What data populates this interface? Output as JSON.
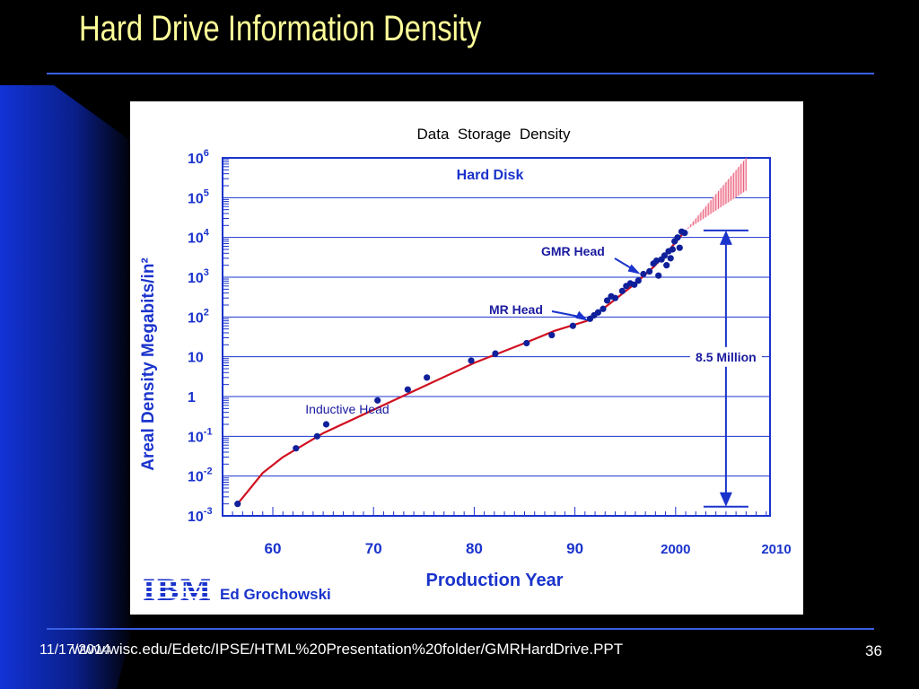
{
  "slide": {
    "title": "Hard Drive Information Density",
    "date": "11/17/2014",
    "url": "www.wisc.edu/Edetc/IPSE/HTML%20Presentation%20folder/GMRHardDrive.PPT",
    "page": "36"
  },
  "colors": {
    "background": "#000000",
    "title": "#ffff99",
    "rule": "#3a5ee6",
    "axis_text": "#1a33cc",
    "trend": "#d01020",
    "points": "#10209a",
    "projection": "#f4a0b0"
  },
  "chart_data": {
    "type": "scatter",
    "title": "Data  Storage  Density",
    "subtitle": "Hard Disk",
    "xlabel": "Production Year",
    "ylabel": "Areal Density Megabits/in²",
    "y_scale": "log",
    "xlim": [
      1955,
      2010
    ],
    "ylim": [
      0.001,
      1000000
    ],
    "x_tick_labels": [
      "60",
      "70",
      "80",
      "90",
      "2000",
      "2010"
    ],
    "y_tick_labels": [
      {
        "base": "10",
        "exp": "6"
      },
      {
        "base": "10",
        "exp": "5"
      },
      {
        "base": "10",
        "exp": "4"
      },
      {
        "base": "10",
        "exp": "3"
      },
      {
        "base": "10",
        "exp": "2"
      },
      {
        "base": "10",
        "exp": ""
      },
      {
        "base": "1",
        "exp": ""
      },
      {
        "base": "10",
        "exp": "-1"
      },
      {
        "base": "10",
        "exp": "-2"
      },
      {
        "base": "10",
        "exp": "-3"
      }
    ],
    "grid": true,
    "series": [
      {
        "values": [
          [
            1956.5,
            0.002
          ],
          [
            1962.3,
            0.05
          ],
          [
            1964.4,
            0.1
          ],
          [
            1965.3,
            0.2
          ],
          [
            1970.4,
            0.8
          ],
          [
            1973.4,
            1.5
          ],
          [
            1975.3,
            3
          ],
          [
            1979.7,
            8
          ],
          [
            1982.1,
            12
          ],
          [
            1985.2,
            22
          ],
          [
            1987.7,
            35
          ],
          [
            1989.8,
            60
          ],
          [
            1991.5,
            90
          ],
          [
            1991.9,
            110
          ],
          [
            1992.3,
            130
          ],
          [
            1992.8,
            160
          ],
          [
            1993.2,
            260
          ],
          [
            1993.6,
            330
          ],
          [
            1994.0,
            300
          ],
          [
            1994.7,
            450
          ],
          [
            1995.1,
            600
          ],
          [
            1995.5,
            700
          ],
          [
            1995.9,
            650
          ],
          [
            1996.3,
            820
          ],
          [
            1996.8,
            1200
          ],
          [
            1997.4,
            1400
          ],
          [
            1997.8,
            2200
          ],
          [
            1998.1,
            2600
          ],
          [
            1998.3,
            1100
          ],
          [
            1998.6,
            2800
          ],
          [
            1998.9,
            3500
          ],
          [
            1999.1,
            2000
          ],
          [
            1999.3,
            4500
          ],
          [
            1999.5,
            3000
          ],
          [
            1999.7,
            5000
          ],
          [
            1999.9,
            8000
          ],
          [
            2000.2,
            10000
          ],
          [
            2000.4,
            5500
          ],
          [
            2000.6,
            14000
          ],
          [
            2000.9,
            13000
          ]
        ]
      }
    ],
    "trend_line": [
      [
        1956.5,
        0.002
      ],
      [
        1959,
        0.012
      ],
      [
        1961,
        0.03
      ],
      [
        1963,
        0.06
      ],
      [
        1965,
        0.12
      ],
      [
        1975,
        1.8
      ],
      [
        1980,
        7
      ],
      [
        1985,
        22
      ],
      [
        1988,
        45
      ],
      [
        1991.2,
        80
      ],
      [
        1993.5,
        220
      ],
      [
        1996,
        700
      ],
      [
        1997.8,
        1800
      ],
      [
        1999,
        3800
      ],
      [
        2001,
        15000
      ]
    ],
    "projection_band": {
      "start": [
        2001,
        15000
      ],
      "end_x": 2007,
      "end_low": 150000,
      "end_high": 1000000
    },
    "annotations": [
      {
        "text": "Inductive Head",
        "x": 1963.5,
        "y": 0.2
      },
      {
        "text": "MR Head",
        "x": 1991.3,
        "y": 80
      },
      {
        "text": "GMR Head",
        "x": 1996.5,
        "y": 1200
      },
      {
        "text": "8.5 Million",
        "from_y": 15000,
        "to_y": 0.0017,
        "x": 2005
      }
    ],
    "credit": {
      "logo": "IBM",
      "author": "Ed Grochowski"
    }
  }
}
